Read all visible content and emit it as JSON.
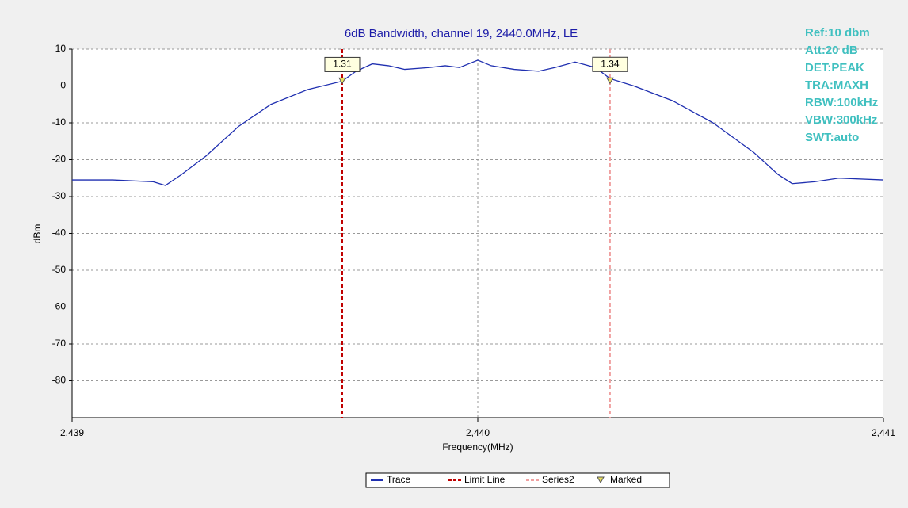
{
  "chart_data": {
    "type": "line",
    "title": "6dB Bandwidth,  channel 19, 2440.0MHz, LE",
    "xlabel": "Frequency(MHz)",
    "ylabel": "dBm",
    "xlim": [
      2439,
      2441
    ],
    "xticks": [
      {
        "value": 2439,
        "label": "2,439"
      },
      {
        "value": 2440,
        "label": "2,440"
      },
      {
        "value": 2441,
        "label": "2,441"
      }
    ],
    "ylim": [
      -90,
      10
    ],
    "yticks": [
      10,
      0,
      -10,
      -20,
      -30,
      -40,
      -50,
      -60,
      -70,
      -80
    ],
    "grid": true,
    "annotations": [
      "Ref:10 dbm",
      "Att:20 dB",
      "DET:PEAK",
      "TRA:MAXH",
      "RBW:100kHz",
      "VBW:300kHz",
      "SWT:auto"
    ],
    "series": [
      {
        "name": "Trace",
        "color": "#1f2fb0",
        "x": [
          2439.0,
          2439.1,
          2439.2,
          2439.23,
          2439.27,
          2439.33,
          2439.41,
          2439.49,
          2439.58,
          2439.666,
          2439.7,
          2439.74,
          2439.78,
          2439.82,
          2439.88,
          2439.92,
          2439.955,
          2440.0,
          2440.033,
          2440.09,
          2440.15,
          2440.19,
          2440.24,
          2440.29,
          2440.326,
          2440.385,
          2440.48,
          2440.58,
          2440.68,
          2440.74,
          2440.775,
          2440.83,
          2440.89,
          2441.0
        ],
        "values": [
          -25.5,
          -25.5,
          -26,
          -27,
          -24,
          -19,
          -11,
          -5,
          -1,
          1.3,
          4,
          6,
          5.5,
          4.5,
          5,
          5.5,
          5,
          7,
          5.5,
          4.5,
          4,
          5,
          6.5,
          5,
          2,
          0,
          -4,
          -10,
          -18,
          -24,
          -26.5,
          -26,
          -25,
          -25.5
        ]
      },
      {
        "name": "Limit Line",
        "color": "#c00000",
        "x": [
          2439.666
        ]
      },
      {
        "name": "Series2",
        "color": "#f0a0a0",
        "x": [
          2440.326
        ]
      },
      {
        "name": "Marked",
        "color": "#e8e060",
        "x": [
          2439.666,
          2440.326
        ],
        "values": [
          1.31,
          1.34
        ]
      }
    ]
  }
}
